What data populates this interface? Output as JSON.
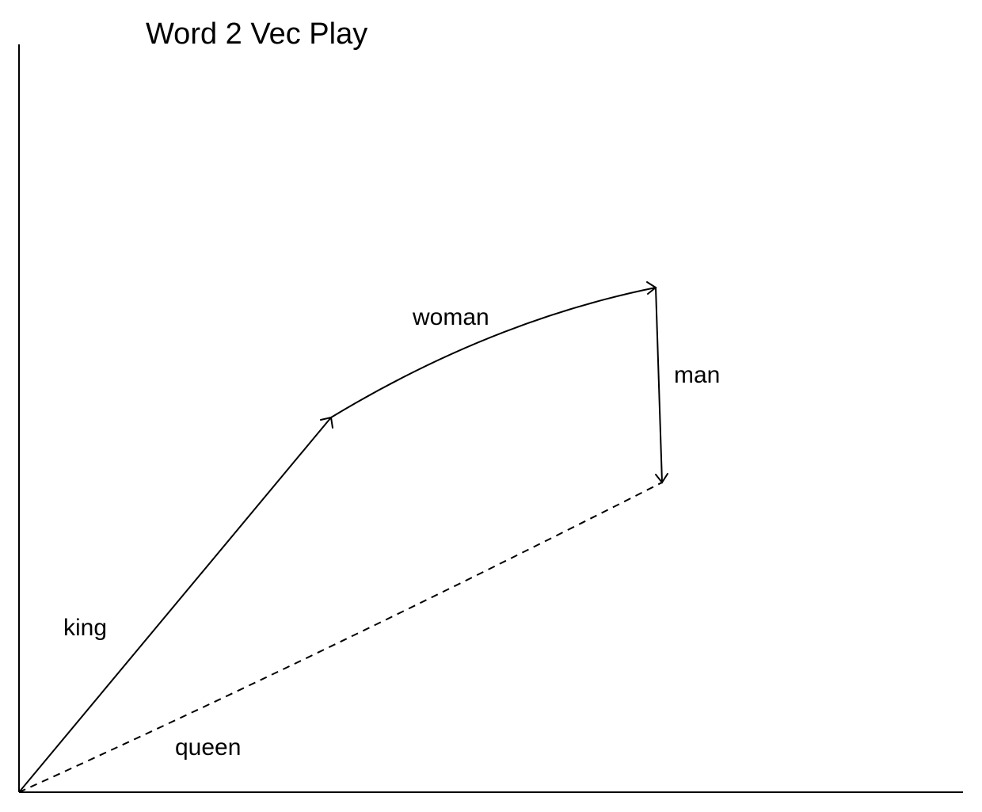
{
  "title": "Word 2 Vec Play",
  "vectors": [
    {
      "key": "king",
      "label": "king",
      "style": "solid",
      "arrow": true
    },
    {
      "key": "woman",
      "label": "woman",
      "style": "solid",
      "arrow": true
    },
    {
      "key": "man",
      "label": "man",
      "style": "solid",
      "arrow": true
    },
    {
      "key": "queen",
      "label": "queen",
      "style": "dashed",
      "arrow": false
    }
  ],
  "labels": {
    "king": "king",
    "woman": "woman",
    "man": "man",
    "queen": "queen"
  }
}
